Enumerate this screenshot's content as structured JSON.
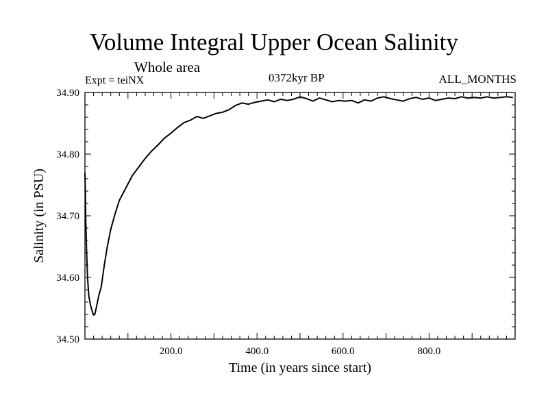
{
  "chart_data": {
    "type": "line",
    "title": "Volume Integral Upper Ocean Salinity",
    "subtitle": "Whole area",
    "experiment_label": "Expt = teiNX",
    "period_label": "0372kyr BP",
    "months_label": "ALL_MONTHS",
    "xlabel": "Time (in years since start)",
    "ylabel": "Salinity (in PSU)",
    "xlim": [
      0,
      1000
    ],
    "ylim": [
      34.5,
      34.9
    ],
    "x_ticks": [
      200,
      400,
      600,
      800
    ],
    "x_tick_labels": [
      "200.0",
      "400.0",
      "600.0",
      "800.0"
    ],
    "y_ticks": [
      34.5,
      34.6,
      34.7,
      34.8,
      34.9
    ],
    "y_tick_labels": [
      "34.50",
      "34.60",
      "34.70",
      "34.80",
      "34.90"
    ],
    "series": [
      {
        "name": "salinity",
        "x": [
          0,
          1,
          2,
          4,
          6,
          9,
          13,
          17,
          20,
          23,
          27,
          32,
          38,
          45,
          52,
          60,
          70,
          80,
          95,
          110,
          125,
          140,
          155,
          170,
          185,
          200,
          215,
          230,
          245,
          260,
          275,
          290,
          305,
          320,
          335,
          350,
          365,
          380,
          395,
          410,
          425,
          440,
          455,
          470,
          485,
          500,
          515,
          530,
          545,
          560,
          575,
          590,
          605,
          620,
          635,
          650,
          665,
          680,
          695,
          710,
          725,
          740,
          755,
          770,
          785,
          800,
          815,
          830,
          845,
          860,
          875,
          890,
          905,
          920,
          935,
          950,
          965,
          980,
          995
        ],
        "values": [
          34.77,
          34.74,
          34.69,
          34.64,
          34.6,
          34.57,
          34.555,
          34.545,
          34.539,
          34.54,
          34.553,
          34.57,
          34.585,
          34.62,
          34.65,
          34.678,
          34.703,
          34.725,
          34.745,
          34.765,
          34.779,
          34.793,
          34.805,
          34.815,
          34.826,
          34.834,
          34.843,
          34.851,
          34.855,
          34.861,
          34.858,
          34.862,
          34.866,
          34.868,
          34.872,
          34.879,
          34.883,
          34.881,
          34.884,
          34.886,
          34.888,
          34.885,
          34.889,
          34.887,
          34.889,
          34.893,
          34.89,
          34.886,
          34.891,
          34.888,
          34.885,
          34.887,
          34.886,
          34.887,
          34.883,
          34.888,
          34.886,
          34.891,
          34.893,
          34.89,
          34.888,
          34.886,
          34.89,
          34.892,
          34.889,
          34.891,
          34.887,
          34.889,
          34.891,
          34.89,
          34.893,
          34.891,
          34.892,
          34.891,
          34.893,
          34.891,
          34.892,
          34.893,
          34.892
        ]
      }
    ]
  }
}
